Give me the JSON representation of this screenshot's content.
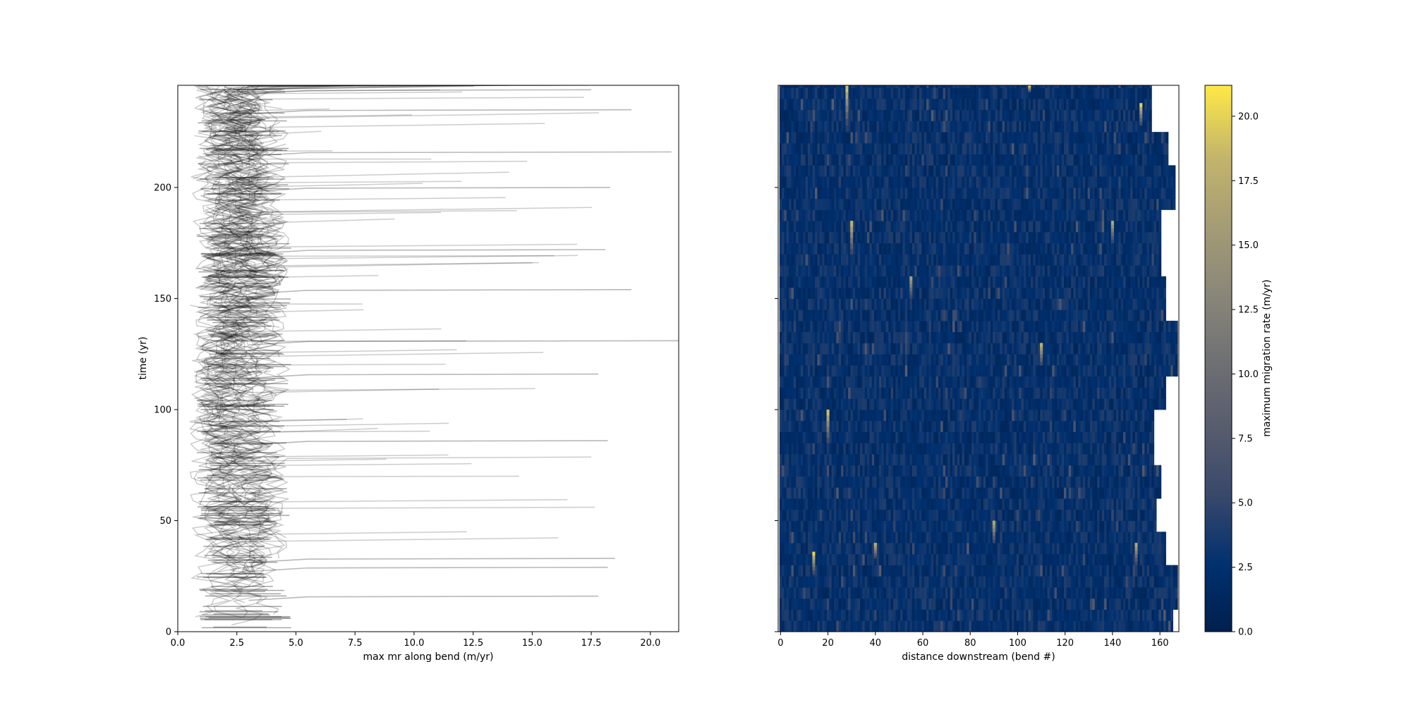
{
  "chart_data": [
    {
      "type": "line",
      "xlabel": "max mr along bend (m/yr)",
      "ylabel": "time (yr)",
      "xlim": [
        0,
        21.2
      ],
      "ylim": [
        0,
        246
      ],
      "xticks": [
        0.0,
        2.5,
        5.0,
        7.5,
        10.0,
        12.5,
        15.0,
        17.5,
        20.0
      ],
      "xtick_labels": [
        "0.0",
        "2.5",
        "5.0",
        "7.5",
        "10.0",
        "12.5",
        "15.0",
        "17.5",
        "20.0"
      ],
      "yticks": [
        0,
        50,
        100,
        150,
        200
      ],
      "ytick_labels": [
        "0",
        "50",
        "100",
        "150",
        "200"
      ],
      "line_color": "#000000",
      "line_alpha": 0.2,
      "description_of_series": "one semi-transparent line per bend; bulk of values between 1 and 5 m/yr",
      "peak_examples": [
        {
          "time": 244,
          "value": 17.5
        },
        {
          "time": 235,
          "value": 19.2
        },
        {
          "time": 216,
          "value": 20.9
        },
        {
          "time": 200,
          "value": 18.3
        },
        {
          "time": 172,
          "value": 18.1
        },
        {
          "time": 154,
          "value": 19.2
        },
        {
          "time": 131,
          "value": 21.2
        },
        {
          "time": 116,
          "value": 17.8
        },
        {
          "time": 86,
          "value": 18.2
        },
        {
          "time": 33,
          "value": 18.5
        },
        {
          "time": 29,
          "value": 18.2
        },
        {
          "time": 16,
          "value": 17.8
        }
      ],
      "grid": false
    },
    {
      "type": "heatmap",
      "xlabel": "distance downstream (bend #)",
      "ylabel": "",
      "xlim": [
        -1,
        168
      ],
      "ylim": [
        0,
        246
      ],
      "xticks": [
        0,
        20,
        40,
        60,
        80,
        100,
        120,
        140,
        160
      ],
      "xtick_labels": [
        "0",
        "20",
        "40",
        "60",
        "80",
        "100",
        "120",
        "140",
        "160"
      ],
      "yticks": [
        0,
        50,
        100,
        150,
        200
      ],
      "colormap": "cividis",
      "colorbar": {
        "label": "maximum migration rate (m/yr)",
        "vmin": 0.0,
        "vmax": 21.2,
        "ticks": [
          0.0,
          2.5,
          5.0,
          7.5,
          10.0,
          12.5,
          15.0,
          17.5,
          20.0
        ],
        "tick_labels": [
          "0.0",
          "2.5",
          "5.0",
          "7.5",
          "10.0",
          "12.5",
          "15.0",
          "17.5",
          "20.0"
        ]
      },
      "row_extents": [
        {
          "t0": 0,
          "t1": 10,
          "max_bend": 165
        },
        {
          "t0": 10,
          "t1": 30,
          "max_bend": 167
        },
        {
          "t0": 30,
          "t1": 45,
          "max_bend": 162
        },
        {
          "t0": 45,
          "t1": 60,
          "max_bend": 158
        },
        {
          "t0": 60,
          "t1": 75,
          "max_bend": 160
        },
        {
          "t0": 75,
          "t1": 100,
          "max_bend": 157
        },
        {
          "t0": 100,
          "t1": 115,
          "max_bend": 162
        },
        {
          "t0": 115,
          "t1": 140,
          "max_bend": 167
        },
        {
          "t0": 140,
          "t1": 160,
          "max_bend": 162
        },
        {
          "t0": 160,
          "t1": 190,
          "max_bend": 160
        },
        {
          "t0": 190,
          "t1": 210,
          "max_bend": 166
        },
        {
          "t0": 210,
          "t1": 225,
          "max_bend": 163
        },
        {
          "t0": 225,
          "t1": 246,
          "max_bend": 156
        }
      ],
      "hotspots": [
        {
          "bend": 14,
          "t0": 26,
          "t1": 36,
          "value": 20
        },
        {
          "bend": 20,
          "t0": 85,
          "t1": 100,
          "value": 19
        },
        {
          "bend": 30,
          "t0": 170,
          "t1": 185,
          "value": 18
        },
        {
          "bend": 28,
          "t0": 228,
          "t1": 246,
          "value": 19
        },
        {
          "bend": 105,
          "t0": 243,
          "t1": 246,
          "value": 20
        },
        {
          "bend": 152,
          "t0": 228,
          "t1": 238,
          "value": 20
        },
        {
          "bend": 110,
          "t0": 120,
          "t1": 130,
          "value": 18
        },
        {
          "bend": 90,
          "t0": 40,
          "t1": 50,
          "value": 17
        },
        {
          "bend": 55,
          "t0": 150,
          "t1": 160,
          "value": 16
        },
        {
          "bend": 140,
          "t0": 175,
          "t1": 185,
          "value": 17
        },
        {
          "bend": 150,
          "t0": 30,
          "t1": 40,
          "value": 17
        },
        {
          "bend": 40,
          "t0": 33,
          "t1": 40,
          "value": 18
        }
      ]
    }
  ]
}
